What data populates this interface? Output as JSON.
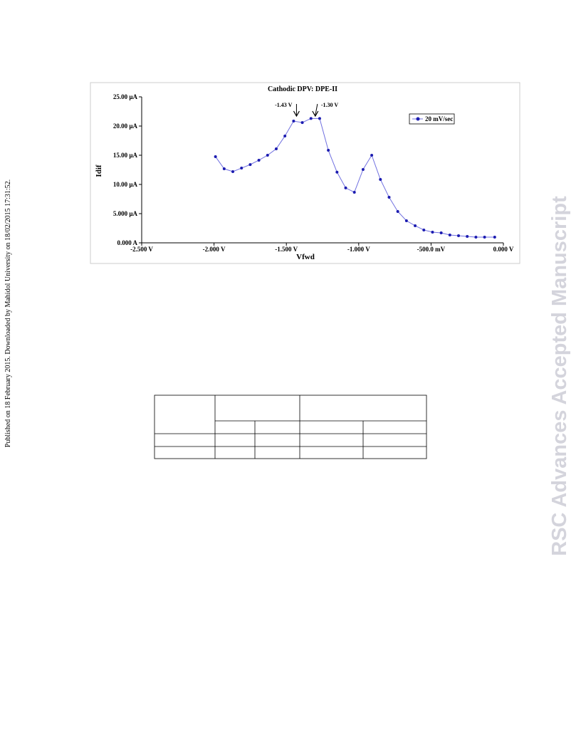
{
  "side_note": "Published on 18 February 2015. Downloaded by Mahidol University on 18/02/2015 17:31:52.",
  "watermark": "RSC Advances Accepted Manuscript",
  "chart_data": {
    "type": "line",
    "title": "Cathodic DPV: DPE-II",
    "x_label": "Vfwd",
    "y_label": "Idif",
    "x": [
      -1.99,
      -1.93,
      -1.87,
      -1.81,
      -1.75,
      -1.69,
      -1.63,
      -1.57,
      -1.51,
      -1.45,
      -1.39,
      -1.33,
      -1.27,
      -1.21,
      -1.15,
      -1.09,
      -1.03,
      -0.97,
      -0.91,
      -0.85,
      -0.79,
      -0.73,
      -0.67,
      -0.61,
      -0.55,
      -0.49,
      -0.43,
      -0.37,
      -0.31,
      -0.25,
      -0.19,
      -0.13,
      -0.06
    ],
    "series": [
      {
        "name": "20 mV/sec",
        "color": "#1c1cb0",
        "values": [
          14.76,
          12.68,
          12.2,
          12.8,
          13.4,
          14.15,
          15.0,
          16.1,
          18.3,
          20.85,
          20.6,
          21.3,
          21.3,
          15.85,
          12.1,
          9.4,
          8.66,
          12.56,
          15.0,
          10.85,
          7.8,
          5.37,
          3.78,
          2.93,
          2.2,
          1.83,
          1.71,
          1.34,
          1.22,
          1.1,
          0.98,
          0.98,
          0.98
        ]
      }
    ],
    "line_color": "#7070e0",
    "annotations": [
      {
        "text": "-1.43 V",
        "x": -1.43
      },
      {
        "text": "-1.30 V",
        "x": -1.3
      }
    ],
    "xlim": [
      -2.5,
      0
    ],
    "xticks": [
      {
        "value": -2.5,
        "label": "-2.500 V"
      },
      {
        "value": -2,
        "label": "-2.000 V"
      },
      {
        "value": -1.5,
        "label": "-1.500 V"
      },
      {
        "value": -1,
        "label": "-1.000 V"
      },
      {
        "value": -0.5,
        "label": "-500.0 mV"
      },
      {
        "value": 0,
        "label": "0.000 V"
      }
    ],
    "ylim": [
      0,
      25
    ],
    "yticks": [
      {
        "value": 0,
        "label": "0.000 A"
      },
      {
        "value": 5,
        "label": "5.000 µA"
      },
      {
        "value": 10,
        "label": "10.00 µA"
      },
      {
        "value": 15,
        "label": "15.00 µA"
      },
      {
        "value": 20,
        "label": "20.00 µA"
      },
      {
        "value": 25,
        "label": "25.00 µA"
      }
    ],
    "legend": "top-right"
  }
}
